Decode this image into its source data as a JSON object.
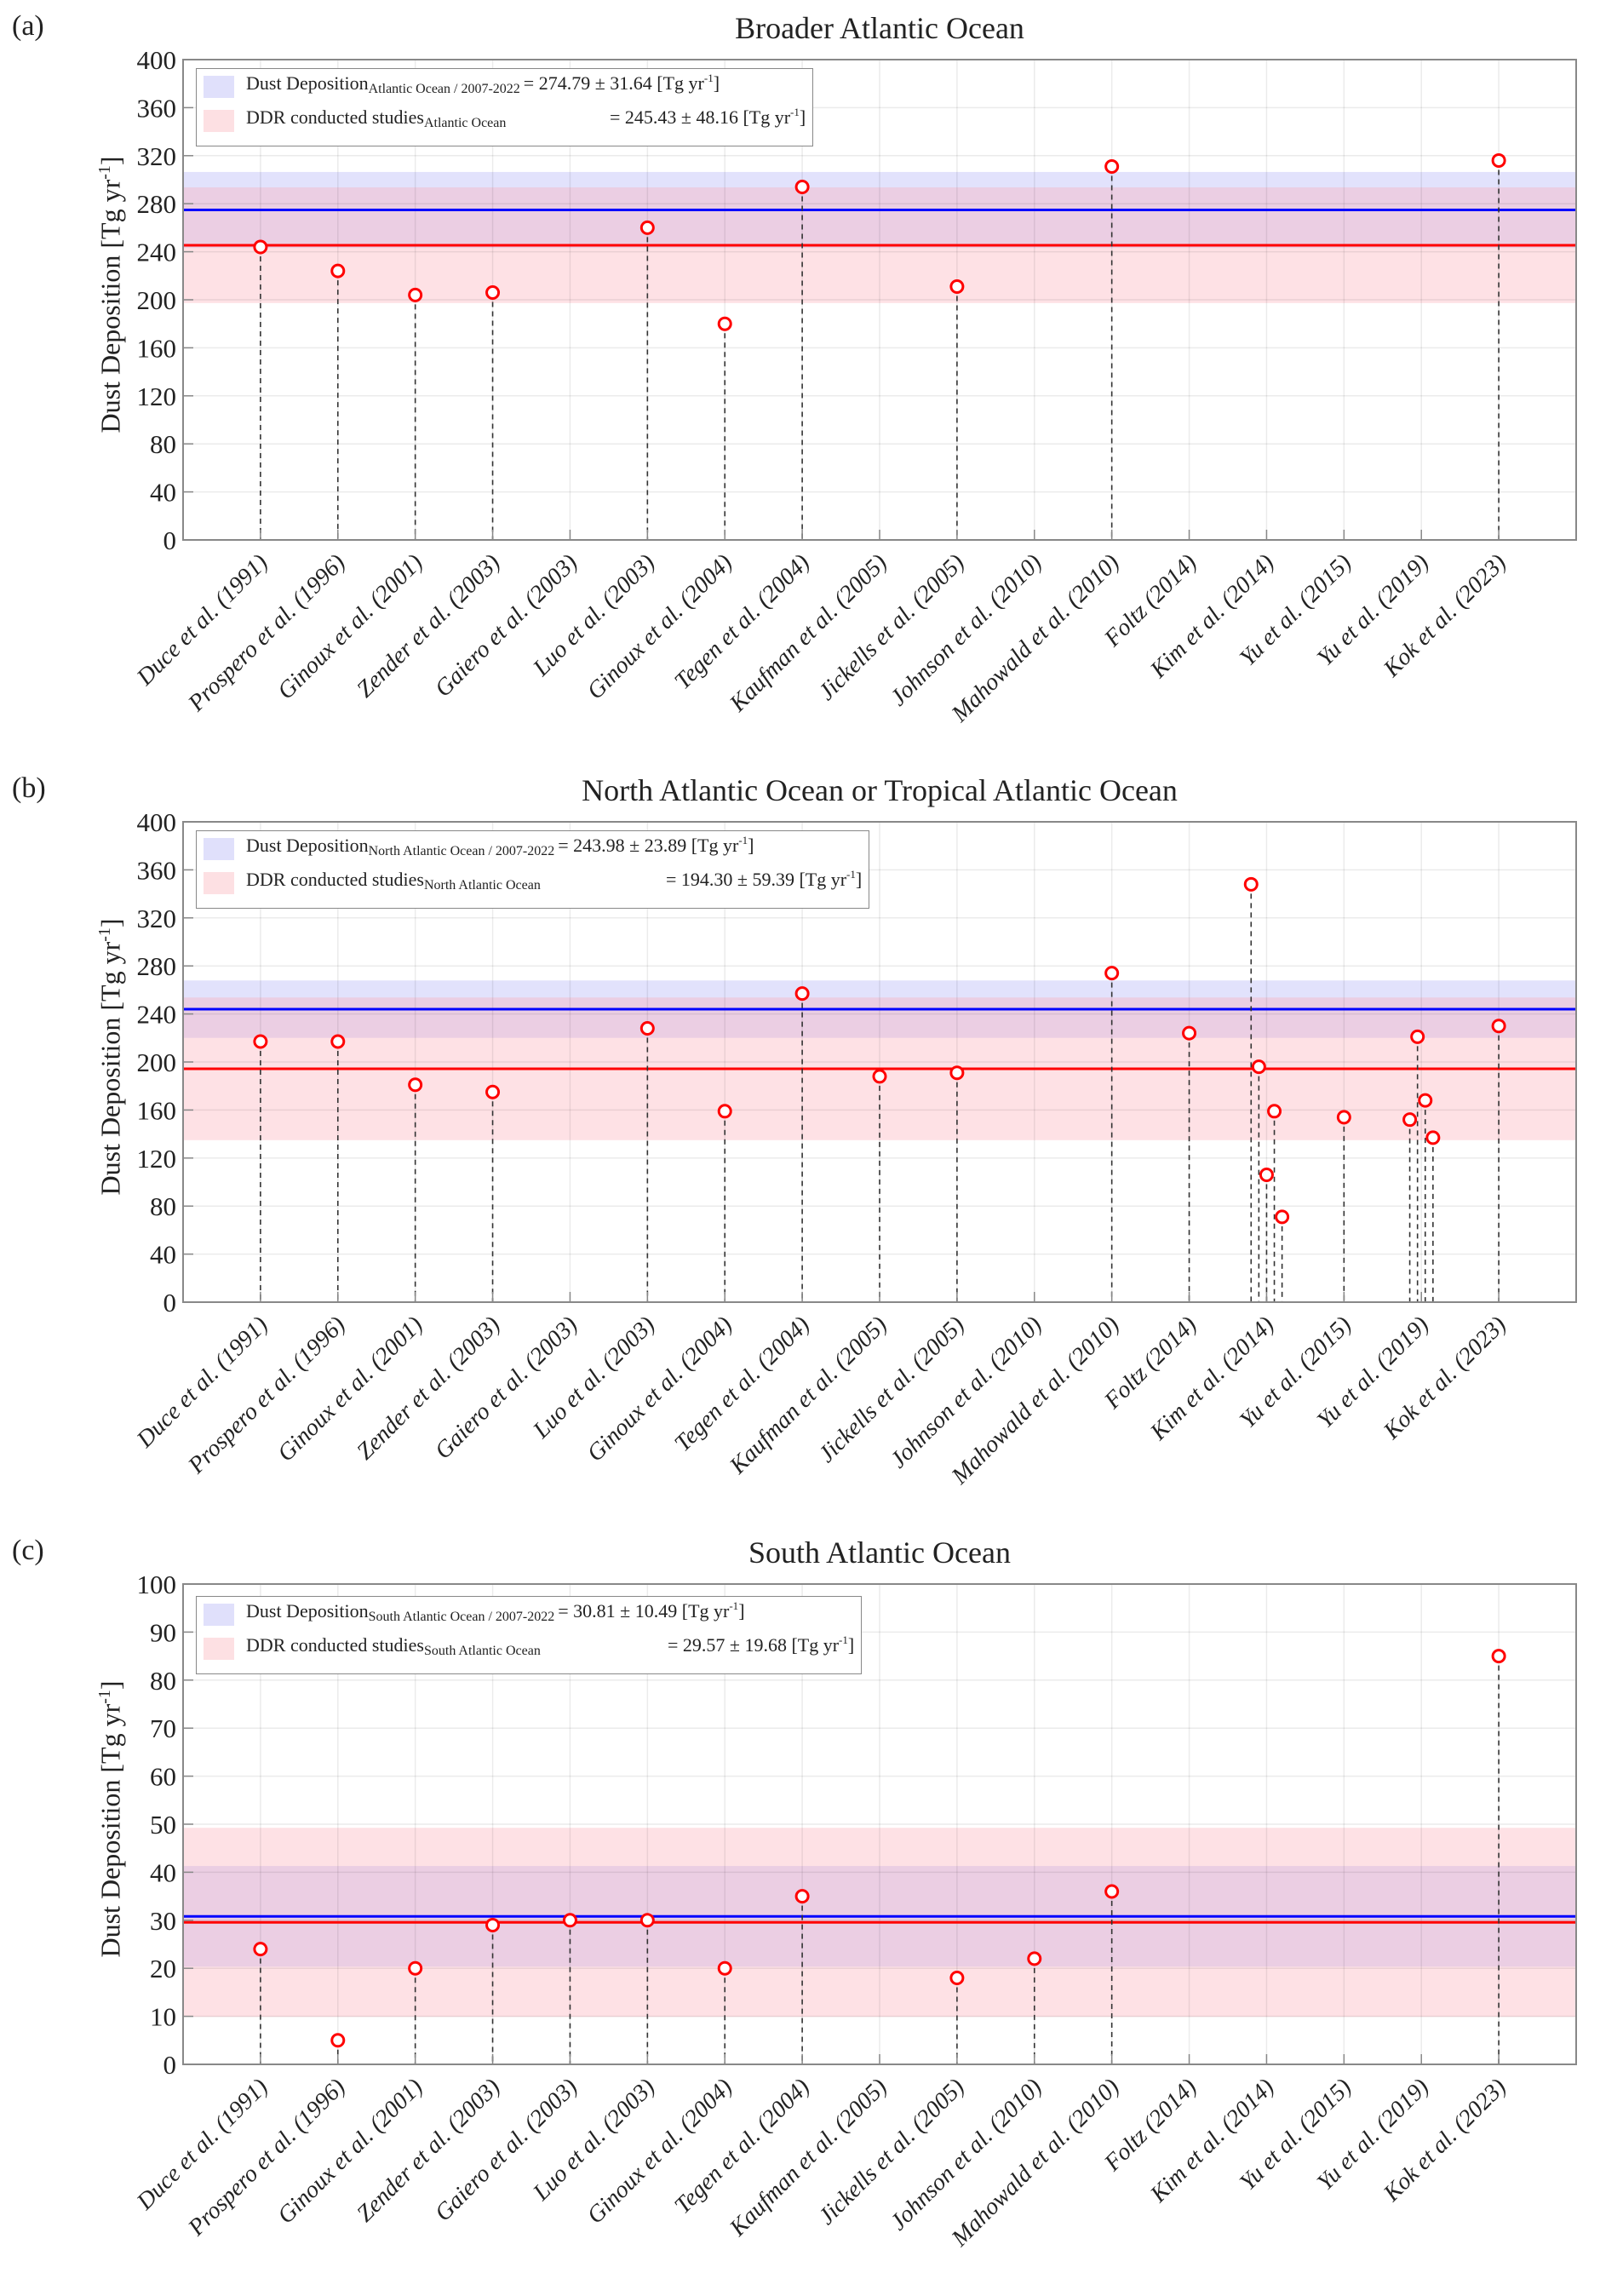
{
  "figure": {
    "panels": [
      "(a)",
      "(b)",
      "(c)"
    ]
  },
  "chart_data": [
    {
      "type": "scatter",
      "subtype": "stem",
      "panel_label": "(a)",
      "title": "Broader Atlantic Ocean",
      "xlabel": "",
      "ylabel": "Dust Deposition [Tg yr-1]",
      "ylabel_main": "Dust Deposition [Tg yr",
      "ylabel_sup": "-1",
      "ylabel_end": "]",
      "ylim": [
        0,
        400
      ],
      "yticks": [
        0,
        40,
        80,
        120,
        160,
        200,
        240,
        280,
        320,
        360,
        400
      ],
      "grid": true,
      "legend_position": "top-left",
      "categories": [
        "Duce et al. (1991)",
        "Prospero et al. (1996)",
        "Ginoux et al. (2001)",
        "Zender et al. (2003)",
        "Gaiero et al. (2003)",
        "Luo et al. (2003)",
        "Ginoux et al. (2004)",
        "Tegen et al. (2004)",
        "Kaufman et al. (2005)",
        "Jickells et al. (2005)",
        "Johnson et al. (2010)",
        "Mahowald et al. (2010)",
        "Foltz (2014)",
        "Kim et al. (2014)",
        "Yu et al. (2015)",
        "Yu et al. (2019)",
        "Kok et al. (2023)"
      ],
      "points": [
        {
          "category": "Duce et al. (1991)",
          "values": [
            244
          ]
        },
        {
          "category": "Prospero et al. (1996)",
          "values": [
            224
          ]
        },
        {
          "category": "Ginoux et al. (2001)",
          "values": [
            204
          ]
        },
        {
          "category": "Zender et al. (2003)",
          "values": [
            206
          ]
        },
        {
          "category": "Luo et al. (2003)",
          "values": [
            260
          ]
        },
        {
          "category": "Ginoux et al. (2004)",
          "values": [
            180
          ]
        },
        {
          "category": "Tegen et al. (2004)",
          "values": [
            294
          ]
        },
        {
          "category": "Jickells et al. (2005)",
          "values": [
            211
          ]
        },
        {
          "category": "Mahowald et al. (2010)",
          "values": [
            311
          ]
        },
        {
          "category": "Kok et al. (2023)",
          "values": [
            316
          ]
        }
      ],
      "reference_lines": [
        {
          "name": "Dust Deposition",
          "subscript": "Atlantic Ocean / 2007-2022",
          "mean": 274.79,
          "std": 31.64,
          "text": "= 274.79 ± 31.64 [Tg yr",
          "unit_sup": "-1",
          "unit_end": "]",
          "line_color": "#0000ff",
          "band_color": "#e0e0fb"
        },
        {
          "name": "DDR conducted studies",
          "subscript": "Atlantic Ocean",
          "mean": 245.43,
          "std": 48.16,
          "text": "= 245.43 ± 48.16 [Tg yr",
          "unit_sup": "-1",
          "unit_end": "]",
          "line_color": "#ff0000",
          "band_color": "#fde0e3"
        }
      ]
    },
    {
      "type": "scatter",
      "subtype": "stem",
      "panel_label": "(b)",
      "title": "North Atlantic Ocean or Tropical Atlantic Ocean",
      "xlabel": "",
      "ylabel": "Dust Deposition [Tg yr-1]",
      "ylabel_main": "Dust Deposition [Tg yr",
      "ylabel_sup": "-1",
      "ylabel_end": "]",
      "ylim": [
        0,
        400
      ],
      "yticks": [
        0,
        40,
        80,
        120,
        160,
        200,
        240,
        280,
        320,
        360,
        400
      ],
      "grid": true,
      "legend_position": "top-left",
      "categories": [
        "Duce et al. (1991)",
        "Prospero et al. (1996)",
        "Ginoux et al. (2001)",
        "Zender et al. (2003)",
        "Gaiero et al. (2003)",
        "Luo et al. (2003)",
        "Ginoux et al. (2004)",
        "Tegen et al. (2004)",
        "Kaufman et al. (2005)",
        "Jickells et al. (2005)",
        "Johnson et al. (2010)",
        "Mahowald et al. (2010)",
        "Foltz (2014)",
        "Kim et al. (2014)",
        "Yu et al. (2015)",
        "Yu et al. (2019)",
        "Kok et al. (2023)"
      ],
      "points": [
        {
          "category": "Duce et al. (1991)",
          "values": [
            217
          ]
        },
        {
          "category": "Prospero et al. (1996)",
          "values": [
            217
          ]
        },
        {
          "category": "Ginoux et al. (2001)",
          "values": [
            181
          ]
        },
        {
          "category": "Zender et al. (2003)",
          "values": [
            175
          ]
        },
        {
          "category": "Luo et al. (2003)",
          "values": [
            228
          ]
        },
        {
          "category": "Ginoux et al. (2004)",
          "values": [
            159
          ]
        },
        {
          "category": "Tegen et al. (2004)",
          "values": [
            257
          ]
        },
        {
          "category": "Kaufman et al. (2005)",
          "values": [
            188
          ]
        },
        {
          "category": "Jickells et al. (2005)",
          "values": [
            191
          ]
        },
        {
          "category": "Mahowald et al. (2010)",
          "values": [
            274
          ]
        },
        {
          "category": "Foltz (2014)",
          "values": [
            224
          ]
        },
        {
          "category": "Kim et al. (2014)",
          "values": [
            348,
            196,
            106,
            159,
            71
          ]
        },
        {
          "category": "Yu et al. (2015)",
          "values": [
            154
          ]
        },
        {
          "category": "Yu et al. (2019)",
          "values": [
            152,
            221,
            168,
            137
          ]
        },
        {
          "category": "Kok et al. (2023)",
          "values": [
            230
          ]
        }
      ],
      "reference_lines": [
        {
          "name": "Dust Deposition",
          "subscript": "North Atlantic Ocean / 2007-2022",
          "mean": 243.98,
          "std": 23.89,
          "text": "= 243.98 ± 23.89 [Tg yr",
          "unit_sup": "-1",
          "unit_end": "]",
          "line_color": "#0000ff",
          "band_color": "#e0e0fb"
        },
        {
          "name": "DDR conducted studies",
          "subscript": "North Atlantic Ocean",
          "mean": 194.3,
          "std": 59.39,
          "text": "= 194.30 ± 59.39 [Tg yr",
          "unit_sup": "-1",
          "unit_end": "]",
          "line_color": "#ff0000",
          "band_color": "#fde0e3"
        }
      ]
    },
    {
      "type": "scatter",
      "subtype": "stem",
      "panel_label": "(c)",
      "title": "South Atlantic Ocean",
      "xlabel": "",
      "ylabel": "Dust Deposition [Tg yr-1]",
      "ylabel_main": "Dust Deposition [Tg yr",
      "ylabel_sup": "-1",
      "ylabel_end": "]",
      "ylim": [
        0,
        100
      ],
      "yticks": [
        0,
        10,
        20,
        30,
        40,
        50,
        60,
        70,
        80,
        90,
        100
      ],
      "grid": true,
      "legend_position": "top-left",
      "categories": [
        "Duce et al. (1991)",
        "Prospero et al. (1996)",
        "Ginoux et al. (2001)",
        "Zender et al. (2003)",
        "Gaiero et al. (2003)",
        "Luo et al. (2003)",
        "Ginoux et al. (2004)",
        "Tegen et al. (2004)",
        "Kaufman et al. (2005)",
        "Jickells et al. (2005)",
        "Johnson et al. (2010)",
        "Mahowald et al. (2010)",
        "Foltz (2014)",
        "Kim et al. (2014)",
        "Yu et al. (2015)",
        "Yu et al. (2019)",
        "Kok et al. (2023)"
      ],
      "points": [
        {
          "category": "Duce et al. (1991)",
          "values": [
            24
          ]
        },
        {
          "category": "Prospero et al. (1996)",
          "values": [
            5
          ]
        },
        {
          "category": "Ginoux et al. (2001)",
          "values": [
            20
          ]
        },
        {
          "category": "Zender et al. (2003)",
          "values": [
            29
          ]
        },
        {
          "category": "Gaiero et al. (2003)",
          "values": [
            30
          ]
        },
        {
          "category": "Luo et al. (2003)",
          "values": [
            30
          ]
        },
        {
          "category": "Ginoux et al. (2004)",
          "values": [
            20
          ]
        },
        {
          "category": "Tegen et al. (2004)",
          "values": [
            35
          ]
        },
        {
          "category": "Jickells et al. (2005)",
          "values": [
            18
          ]
        },
        {
          "category": "Johnson et al. (2010)",
          "values": [
            22
          ]
        },
        {
          "category": "Mahowald et al. (2010)",
          "values": [
            36
          ]
        },
        {
          "category": "Kok et al. (2023)",
          "values": [
            85
          ]
        }
      ],
      "reference_lines": [
        {
          "name": "Dust Deposition",
          "subscript": "South Atlantic Ocean / 2007-2022",
          "mean": 30.81,
          "std": 10.49,
          "text": "= 30.81 ± 10.49 [Tg yr",
          "unit_sup": "-1",
          "unit_end": "]",
          "line_color": "#0000ff",
          "band_color": "#e0e0fb"
        },
        {
          "name": "DDR conducted studies",
          "subscript": "South Atlantic Ocean",
          "mean": 29.57,
          "std": 19.68,
          "text": "= 29.57 ± 19.68 [Tg yr",
          "unit_sup": "-1",
          "unit_end": "]",
          "line_color": "#ff0000",
          "band_color": "#fde0e3"
        }
      ]
    }
  ]
}
